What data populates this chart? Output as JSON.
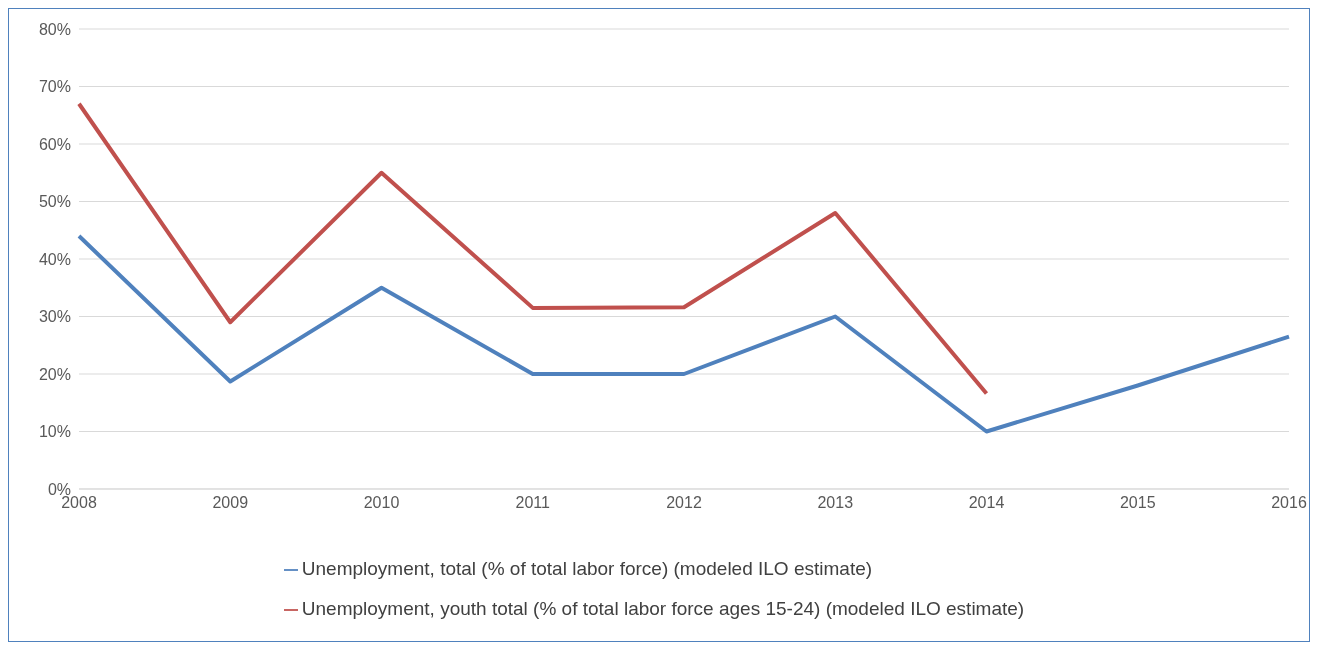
{
  "chart_data": {
    "type": "line",
    "categories": [
      "2008",
      "2009",
      "2010",
      "2011",
      "2012",
      "2013",
      "2014",
      "2015",
      "2016"
    ],
    "series": [
      {
        "name": "Unemployment, total (% of total labor force) (modeled ILO estimate)",
        "color": "#4f81bd",
        "values": [
          44,
          18.7,
          35,
          20,
          20,
          30,
          10,
          18,
          26.5
        ]
      },
      {
        "name": "Unemployment, youth total (% of total labor force ages 15-24) (modeled ILO estimate)",
        "color": "#c0504d",
        "values": [
          67,
          29,
          55,
          31.5,
          31.6,
          48,
          16.6,
          null,
          null
        ]
      }
    ],
    "ylim": [
      0,
      80
    ],
    "yticks": [
      {
        "value": 0,
        "label": "0%"
      },
      {
        "value": 10,
        "label": "10%"
      },
      {
        "value": 20,
        "label": "20%"
      },
      {
        "value": 30,
        "label": "30%"
      },
      {
        "value": 40,
        "label": "40%"
      },
      {
        "value": 50,
        "label": "50%"
      },
      {
        "value": 60,
        "label": "60%"
      },
      {
        "value": 70,
        "label": "70%"
      },
      {
        "value": 80,
        "label": "80%"
      }
    ],
    "grid": "y",
    "legend": "bottom",
    "marker": "none",
    "line_style": "solid"
  }
}
